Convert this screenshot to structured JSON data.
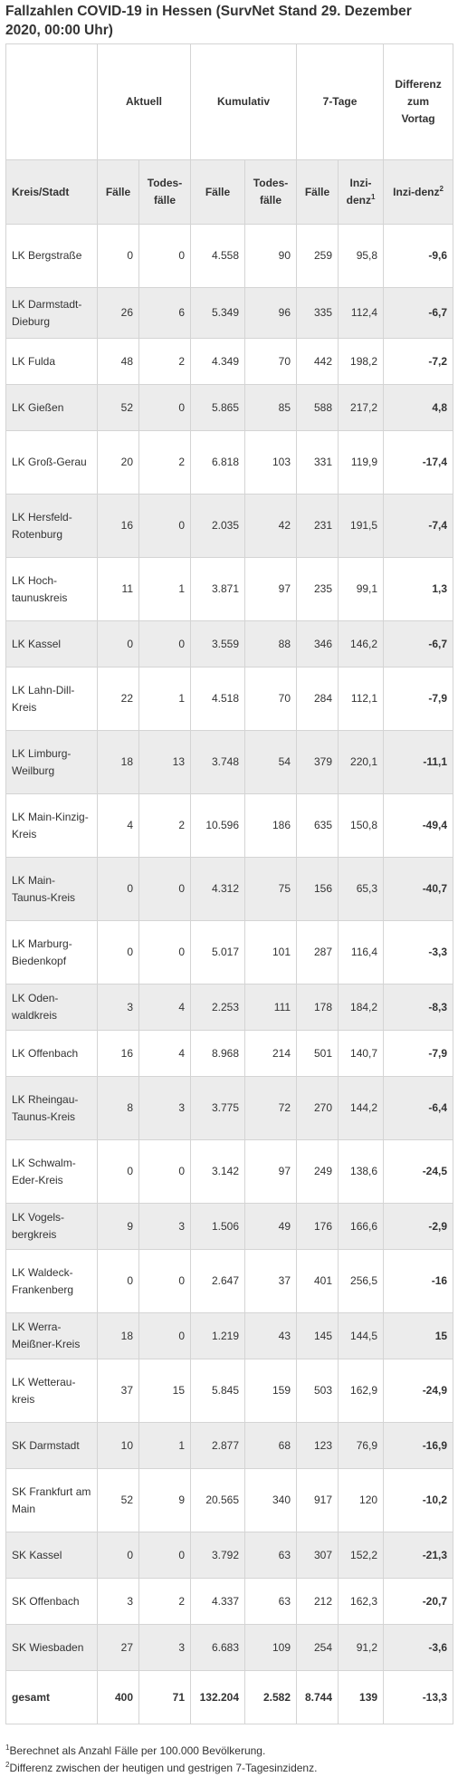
{
  "title": "Fallzahlen COVID-19 in Hessen (SurvNet Stand 29. Dezember 2020, 00:00 Uhr)",
  "header": {
    "group": [
      "Aktuell",
      "Kumulativ",
      "7-Tage",
      "Differenz zum Vortag"
    ],
    "columns": [
      "Kreis/Stadt",
      "Fälle",
      "Todes-fälle",
      "Fälle",
      "Todes-fälle",
      "Fälle",
      "Inzi-denz",
      "Inzi-denz"
    ],
    "inzidenz_sup": "1",
    "diff_sup": "2"
  },
  "rows": [
    {
      "name": "LK Bergstraße",
      "cur_cases": "0",
      "cur_deaths": "0",
      "cum_cases": "4.558",
      "cum_deaths": "90",
      "week_cases": "259",
      "incidence": "95,8",
      "diff": "-9,6"
    },
    {
      "name": "LK Darmstadt-Dieburg",
      "cur_cases": "26",
      "cur_deaths": "6",
      "cum_cases": "5.349",
      "cum_deaths": "96",
      "week_cases": "335",
      "incidence": "112,4",
      "diff": "-6,7"
    },
    {
      "name": "LK Fulda",
      "cur_cases": "48",
      "cur_deaths": "2",
      "cum_cases": "4.349",
      "cum_deaths": "70",
      "week_cases": "442",
      "incidence": "198,2",
      "diff": "-7,2"
    },
    {
      "name": "LK Gießen",
      "cur_cases": "52",
      "cur_deaths": "0",
      "cum_cases": "5.865",
      "cum_deaths": "85",
      "week_cases": "588",
      "incidence": "217,2",
      "diff": "4,8"
    },
    {
      "name": "LK Groß-Gerau",
      "cur_cases": "20",
      "cur_deaths": "2",
      "cum_cases": "6.818",
      "cum_deaths": "103",
      "week_cases": "331",
      "incidence": "119,9",
      "diff": "-17,4"
    },
    {
      "name": "LK Hersfeld-Rotenburg",
      "cur_cases": "16",
      "cur_deaths": "0",
      "cum_cases": "2.035",
      "cum_deaths": "42",
      "week_cases": "231",
      "incidence": "191,5",
      "diff": "-7,4"
    },
    {
      "name": "LK Hoch-taunuskreis",
      "cur_cases": "11",
      "cur_deaths": "1",
      "cum_cases": "3.871",
      "cum_deaths": "97",
      "week_cases": "235",
      "incidence": "99,1",
      "diff": "1,3"
    },
    {
      "name": "LK Kassel",
      "cur_cases": "0",
      "cur_deaths": "0",
      "cum_cases": "3.559",
      "cum_deaths": "88",
      "week_cases": "346",
      "incidence": "146,2",
      "diff": "-6,7"
    },
    {
      "name": "LK Lahn-Dill-Kreis",
      "cur_cases": "22",
      "cur_deaths": "1",
      "cum_cases": "4.518",
      "cum_deaths": "70",
      "week_cases": "284",
      "incidence": "112,1",
      "diff": "-7,9"
    },
    {
      "name": "LK Limburg-Weilburg",
      "cur_cases": "18",
      "cur_deaths": "13",
      "cum_cases": "3.748",
      "cum_deaths": "54",
      "week_cases": "379",
      "incidence": "220,1",
      "diff": "-11,1"
    },
    {
      "name": "LK Main-Kinzig-Kreis",
      "cur_cases": "4",
      "cur_deaths": "2",
      "cum_cases": "10.596",
      "cum_deaths": "186",
      "week_cases": "635",
      "incidence": "150,8",
      "diff": "-49,4"
    },
    {
      "name": "LK Main-Taunus-Kreis",
      "cur_cases": "0",
      "cur_deaths": "0",
      "cum_cases": "4.312",
      "cum_deaths": "75",
      "week_cases": "156",
      "incidence": "65,3",
      "diff": "-40,7"
    },
    {
      "name": "LK Marburg-Biedenkopf",
      "cur_cases": "0",
      "cur_deaths": "0",
      "cum_cases": "5.017",
      "cum_deaths": "101",
      "week_cases": "287",
      "incidence": "116,4",
      "diff": "-3,3"
    },
    {
      "name": "LK Oden-waldkreis",
      "cur_cases": "3",
      "cur_deaths": "4",
      "cum_cases": "2.253",
      "cum_deaths": "111",
      "week_cases": "178",
      "incidence": "184,2",
      "diff": "-8,3"
    },
    {
      "name": "LK Offenbach",
      "cur_cases": "16",
      "cur_deaths": "4",
      "cum_cases": "8.968",
      "cum_deaths": "214",
      "week_cases": "501",
      "incidence": "140,7",
      "diff": "-7,9"
    },
    {
      "name": "LK Rheingau-Taunus-Kreis",
      "cur_cases": "8",
      "cur_deaths": "3",
      "cum_cases": "3.775",
      "cum_deaths": "72",
      "week_cases": "270",
      "incidence": "144,2",
      "diff": "-6,4"
    },
    {
      "name": "LK Schwalm-Eder-Kreis",
      "cur_cases": "0",
      "cur_deaths": "0",
      "cum_cases": "3.142",
      "cum_deaths": "97",
      "week_cases": "249",
      "incidence": "138,6",
      "diff": "-24,5"
    },
    {
      "name": "LK Vogels-bergkreis",
      "cur_cases": "9",
      "cur_deaths": "3",
      "cum_cases": "1.506",
      "cum_deaths": "49",
      "week_cases": "176",
      "incidence": "166,6",
      "diff": "-2,9"
    },
    {
      "name": "LK Waldeck-Frankenberg",
      "cur_cases": "0",
      "cur_deaths": "0",
      "cum_cases": "2.647",
      "cum_deaths": "37",
      "week_cases": "401",
      "incidence": "256,5",
      "diff": "-16"
    },
    {
      "name": "LK Werra-Meißner-Kreis",
      "cur_cases": "18",
      "cur_deaths": "0",
      "cum_cases": "1.219",
      "cum_deaths": "43",
      "week_cases": "145",
      "incidence": "144,5",
      "diff": "15"
    },
    {
      "name": "LK Wetterau-kreis",
      "cur_cases": "37",
      "cur_deaths": "15",
      "cum_cases": "5.845",
      "cum_deaths": "159",
      "week_cases": "503",
      "incidence": "162,9",
      "diff": "-24,9"
    },
    {
      "name": "SK Darmstadt",
      "cur_cases": "10",
      "cur_deaths": "1",
      "cum_cases": "2.877",
      "cum_deaths": "68",
      "week_cases": "123",
      "incidence": "76,9",
      "diff": "-16,9"
    },
    {
      "name": "SK Frankfurt am Main",
      "cur_cases": "52",
      "cur_deaths": "9",
      "cum_cases": "20.565",
      "cum_deaths": "340",
      "week_cases": "917",
      "incidence": "120",
      "diff": "-10,2"
    },
    {
      "name": "SK Kassel",
      "cur_cases": "0",
      "cur_deaths": "0",
      "cum_cases": "3.792",
      "cum_deaths": "63",
      "week_cases": "307",
      "incidence": "152,2",
      "diff": "-21,3"
    },
    {
      "name": "SK Offenbach",
      "cur_cases": "3",
      "cur_deaths": "2",
      "cum_cases": "4.337",
      "cum_deaths": "63",
      "week_cases": "212",
      "incidence": "162,3",
      "diff": "-20,7"
    },
    {
      "name": "SK Wiesbaden",
      "cur_cases": "27",
      "cur_deaths": "3",
      "cum_cases": "6.683",
      "cum_deaths": "109",
      "week_cases": "254",
      "incidence": "91,2",
      "diff": "-3,6"
    }
  ],
  "total": {
    "name": "gesamt",
    "cur_cases": "400",
    "cur_deaths": "71",
    "cum_cases": "132.204",
    "cum_deaths": "2.582",
    "week_cases": "8.744",
    "incidence": "139",
    "diff": "-13,3"
  },
  "footnotes": [
    {
      "mark": "1",
      "text": "Berechnet als Anzahl Fälle per 100.000 Bevölkerung."
    },
    {
      "mark": "2",
      "text": "Differenz zwischen der heutigen und gestrigen 7-Tagesinzidenz."
    }
  ]
}
